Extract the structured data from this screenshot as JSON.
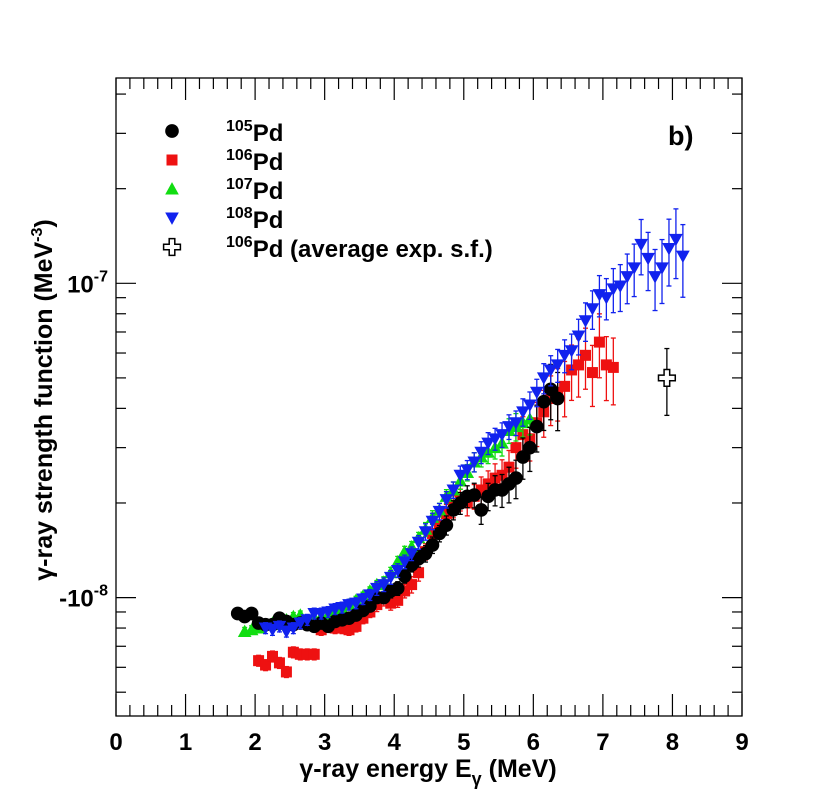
{
  "chart_data": {
    "type": "scatter",
    "panel_label": "b)",
    "xlabel_main": "γ-ray energy E",
    "xlabel_sub": "γ",
    "xlabel_unit": " (MeV)",
    "ylabel_main": "γ-ray strength function (MeV",
    "ylabel_sup": "-3",
    "ylabel_close": ")",
    "x_range": [
      0,
      9
    ],
    "y_scale": "log",
    "y_range": [
      4.2e-09,
      4.5e-07
    ],
    "x_tick_labels": [
      "0",
      "1",
      "2",
      "3",
      "4",
      "5",
      "6",
      "7",
      "8",
      "9"
    ],
    "y_tick_labels": [
      {
        "value": 1e-07,
        "base": "10",
        "exp": "-7"
      },
      {
        "value": 1e-08,
        "base": "-10",
        "exp": "-8"
      }
    ],
    "legend_position": "top-left",
    "series": [
      {
        "name": "Pd",
        "mass": "105",
        "marker": "circle",
        "color": "#000000",
        "x": [
          1.75,
          1.85,
          1.95,
          2.05,
          2.15,
          2.25,
          2.35,
          2.45,
          2.55,
          2.65,
          2.75,
          2.85,
          2.95,
          3.05,
          3.15,
          3.25,
          3.35,
          3.45,
          3.55,
          3.65,
          3.75,
          3.85,
          3.95,
          4.05,
          4.15,
          4.25,
          4.35,
          4.45,
          4.55,
          4.65,
          4.75,
          4.85,
          4.95,
          5.05,
          5.15,
          5.25,
          5.35,
          5.45,
          5.55,
          5.65,
          5.75,
          5.85,
          5.95,
          6.05,
          6.15,
          6.25,
          6.35
        ],
        "y": [
          8.9e-09,
          8.7e-09,
          8.9e-09,
          8.3e-09,
          8.2e-09,
          8.2e-09,
          8.6e-09,
          8.4e-09,
          8.2e-09,
          8.3e-09,
          8.2e-09,
          8.1e-09,
          8.3e-09,
          8.1e-09,
          8.4e-09,
          8.5e-09,
          8.6e-09,
          8.8e-09,
          9.1e-09,
          9.4e-09,
          1e-08,
          1e-08,
          1.05e-08,
          1.07e-08,
          1.17e-08,
          1.27e-08,
          1.33e-08,
          1.38e-08,
          1.47e-08,
          1.6e-08,
          1.7e-08,
          1.9e-08,
          2e-08,
          2.1e-08,
          2.12e-08,
          1.9e-08,
          2.1e-08,
          2.2e-08,
          2.2e-08,
          2.3e-08,
          2.4e-08,
          2.8e-08,
          3e-08,
          3.5e-08,
          4.2e-08,
          4.6e-08,
          4.3e-08
        ],
        "y_err_frac": [
          0.03,
          0.03,
          0.03,
          0.03,
          0.03,
          0.03,
          0.03,
          0.03,
          0.03,
          0.03,
          0.03,
          0.03,
          0.03,
          0.03,
          0.03,
          0.03,
          0.03,
          0.03,
          0.04,
          0.04,
          0.04,
          0.04,
          0.05,
          0.05,
          0.05,
          0.05,
          0.06,
          0.06,
          0.06,
          0.06,
          0.07,
          0.07,
          0.08,
          0.08,
          0.09,
          0.1,
          0.1,
          0.11,
          0.12,
          0.13,
          0.14,
          0.15,
          0.16,
          0.17,
          0.19,
          0.2,
          0.21
        ]
      },
      {
        "name": "Pd",
        "mass": "106",
        "marker": "square",
        "color": "#ee1111",
        "x": [
          2.05,
          2.15,
          2.25,
          2.35,
          2.45,
          2.55,
          2.65,
          2.75,
          2.85,
          2.95,
          3.05,
          3.15,
          3.25,
          3.35,
          3.45,
          3.55,
          3.65,
          3.75,
          3.85,
          3.95,
          4.05,
          4.15,
          4.25,
          4.35,
          4.45,
          4.55,
          4.65,
          4.75,
          4.85,
          4.95,
          5.05,
          5.15,
          5.25,
          5.35,
          5.45,
          5.55,
          5.65,
          5.75,
          5.85,
          5.95,
          6.05,
          6.15,
          6.25,
          6.35,
          6.45,
          6.55,
          6.65,
          6.75,
          6.85,
          6.95,
          7.05,
          7.15
        ],
        "y": [
          6.3e-09,
          6.1e-09,
          6.5e-09,
          6.2e-09,
          5.8e-09,
          6.7e-09,
          6.6e-09,
          6.6e-09,
          6.6e-09,
          7.9e-09,
          8.1e-09,
          8e-09,
          8e-09,
          7.9e-09,
          8.1e-09,
          8.6e-09,
          9e-09,
          9.5e-09,
          9.9e-09,
          9.6e-09,
          9.8e-09,
          1.05e-08,
          1.1e-08,
          1.2e-08,
          1.4e-08,
          1.6e-08,
          1.7e-08,
          1.85e-08,
          1.95e-08,
          2.05e-08,
          2e-08,
          2.1e-08,
          2.2e-08,
          2.3e-08,
          2.4e-08,
          2.45e-08,
          2.6e-08,
          3e-08,
          3.3e-08,
          3.2e-08,
          3.6e-08,
          3.9e-08,
          4.3e-08,
          4.5e-08,
          4.7e-08,
          5.3e-08,
          5.5e-08,
          5.9e-08,
          5.2e-08,
          6.5e-08,
          5.5e-08,
          5.4e-08
        ],
        "y_err_frac": [
          0.04,
          0.04,
          0.04,
          0.04,
          0.04,
          0.04,
          0.04,
          0.04,
          0.04,
          0.04,
          0.04,
          0.04,
          0.04,
          0.04,
          0.04,
          0.04,
          0.04,
          0.05,
          0.05,
          0.05,
          0.05,
          0.05,
          0.06,
          0.06,
          0.06,
          0.07,
          0.07,
          0.07,
          0.08,
          0.08,
          0.09,
          0.09,
          0.1,
          0.1,
          0.11,
          0.12,
          0.13,
          0.14,
          0.14,
          0.15,
          0.16,
          0.17,
          0.18,
          0.19,
          0.2,
          0.2,
          0.21,
          0.22,
          0.22,
          0.23,
          0.23,
          0.24
        ]
      },
      {
        "name": "Pd",
        "mass": "107",
        "marker": "triangle-up",
        "color": "#11dd11",
        "x": [
          1.85,
          1.95,
          2.05,
          2.15,
          2.25,
          2.35,
          2.45,
          2.55,
          2.65,
          2.75,
          2.85,
          2.95,
          3.05,
          3.15,
          3.25,
          3.35,
          3.45,
          3.55,
          3.65,
          3.75,
          3.85,
          3.95,
          4.05,
          4.15,
          4.25,
          4.35,
          4.45,
          4.55,
          4.65,
          4.75,
          4.85,
          4.95,
          5.05,
          5.15,
          5.25,
          5.35,
          5.45,
          5.55,
          5.65,
          5.75,
          5.85,
          5.95
        ],
        "y": [
          7.8e-09,
          7.9e-09,
          8e-09,
          8.2e-09,
          8.3e-09,
          8.2e-09,
          8.5e-09,
          8.7e-09,
          8.8e-09,
          8.4e-09,
          8.6e-09,
          8.7e-09,
          8.8e-09,
          9e-09,
          9.2e-09,
          9.5e-09,
          9.8e-09,
          1.01e-08,
          1.05e-08,
          1.1e-08,
          1.12e-08,
          1.2e-08,
          1.3e-08,
          1.4e-08,
          1.45e-08,
          1.55e-08,
          1.65e-08,
          1.8e-08,
          1.9e-08,
          2.1e-08,
          2.2e-08,
          2.35e-08,
          2.5e-08,
          2.7e-08,
          2.8e-08,
          2.9e-08,
          3e-08,
          3.1e-08,
          3.4e-08,
          3.5e-08,
          3.6e-08,
          3.7e-08
        ],
        "y_err_frac": [
          0.03,
          0.03,
          0.03,
          0.03,
          0.03,
          0.03,
          0.03,
          0.03,
          0.03,
          0.03,
          0.03,
          0.03,
          0.03,
          0.03,
          0.03,
          0.03,
          0.03,
          0.03,
          0.03,
          0.03,
          0.04,
          0.04,
          0.04,
          0.04,
          0.04,
          0.04,
          0.05,
          0.05,
          0.05,
          0.05,
          0.06,
          0.06,
          0.06,
          0.07,
          0.07,
          0.08,
          0.08,
          0.09,
          0.09,
          0.1,
          0.1,
          0.11
        ]
      },
      {
        "name": "Pd",
        "mass": "108",
        "marker": "triangle-down",
        "color": "#1122ee",
        "x": [
          2.15,
          2.25,
          2.35,
          2.45,
          2.55,
          2.65,
          2.75,
          2.85,
          2.95,
          3.05,
          3.15,
          3.25,
          3.35,
          3.45,
          3.55,
          3.65,
          3.75,
          3.85,
          3.95,
          4.05,
          4.15,
          4.25,
          4.35,
          4.45,
          4.55,
          4.65,
          4.75,
          4.85,
          4.95,
          5.05,
          5.15,
          5.25,
          5.35,
          5.45,
          5.55,
          5.65,
          5.75,
          5.85,
          5.95,
          6.05,
          6.15,
          6.25,
          6.35,
          6.45,
          6.55,
          6.65,
          6.75,
          6.85,
          6.95,
          7.05,
          7.15,
          7.25,
          7.35,
          7.45,
          7.55,
          7.65,
          7.75,
          7.85,
          7.95,
          8.05,
          8.15
        ],
        "y": [
          8e-09,
          7.9e-09,
          8.1e-09,
          7.8e-09,
          8e-09,
          8.3e-09,
          8.5e-09,
          8.9e-09,
          8.9e-09,
          9e-09,
          9.2e-09,
          9.3e-09,
          9.5e-09,
          9.6e-09,
          9.9e-09,
          1.02e-08,
          1.07e-08,
          1.1e-08,
          1.16e-08,
          1.22e-08,
          1.3e-08,
          1.38e-08,
          1.5e-08,
          1.62e-08,
          1.75e-08,
          1.88e-08,
          2.05e-08,
          2.2e-08,
          2.45e-08,
          2.55e-08,
          2.7e-08,
          2.9e-08,
          3.1e-08,
          3.2e-08,
          3.3e-08,
          3.5e-08,
          3.6e-08,
          3.9e-08,
          4.1e-08,
          4.5e-08,
          5e-08,
          5.3e-08,
          5.5e-08,
          5.9e-08,
          6.1e-08,
          6.8e-08,
          7.6e-08,
          8.3e-08,
          9.2e-08,
          9e-08,
          9.6e-08,
          9.8e-08,
          1.05e-07,
          1.12e-07,
          1.33e-07,
          1.2e-07,
          1.05e-07,
          1.12e-07,
          1.29e-07,
          1.38e-07,
          1.22e-07
        ],
        "y_err_frac": [
          0.04,
          0.04,
          0.04,
          0.04,
          0.04,
          0.04,
          0.04,
          0.04,
          0.04,
          0.04,
          0.04,
          0.04,
          0.04,
          0.04,
          0.04,
          0.04,
          0.05,
          0.05,
          0.05,
          0.05,
          0.05,
          0.05,
          0.05,
          0.06,
          0.06,
          0.06,
          0.06,
          0.06,
          0.07,
          0.07,
          0.07,
          0.08,
          0.08,
          0.08,
          0.09,
          0.09,
          0.09,
          0.1,
          0.1,
          0.1,
          0.11,
          0.11,
          0.12,
          0.12,
          0.13,
          0.13,
          0.14,
          0.14,
          0.15,
          0.15,
          0.16,
          0.17,
          0.18,
          0.19,
          0.2,
          0.21,
          0.22,
          0.23,
          0.24,
          0.25,
          0.26
        ]
      },
      {
        "name": "Pd (average exp. s.f.)",
        "mass": "106",
        "marker": "open-cross",
        "color": "#000000",
        "x": [
          7.92
        ],
        "y": [
          5e-08
        ],
        "y_err_frac": [
          0.24
        ]
      }
    ]
  }
}
